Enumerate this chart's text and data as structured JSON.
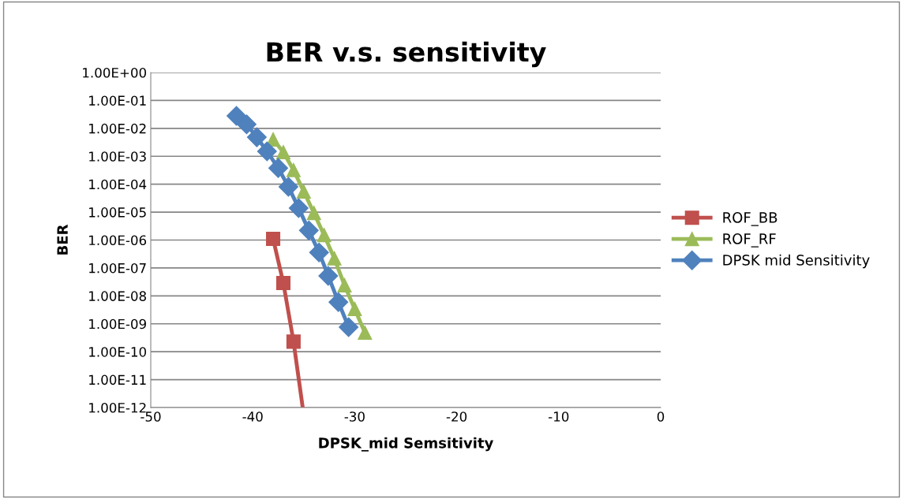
{
  "chart_data": {
    "type": "line",
    "title": "BER v.s. sensitivity",
    "xlabel": "DPSK_mid Semsitivity",
    "ylabel": "BER",
    "log": "y",
    "xlim": [
      -50,
      0
    ],
    "xticks": [
      -50,
      -40,
      -30,
      -20,
      -10,
      0
    ],
    "ylim": [
      1e-12,
      1
    ],
    "yticks": [
      {
        "value": 1e-12,
        "label": "1.00E-12"
      },
      {
        "value": 1e-11,
        "label": "1.00E-11"
      },
      {
        "value": 1e-10,
        "label": "1.00E-10"
      },
      {
        "value": 1e-09,
        "label": "1.00E-09"
      },
      {
        "value": 1e-08,
        "label": "1.00E-08"
      },
      {
        "value": 1e-07,
        "label": "1.00E-07"
      },
      {
        "value": 1e-06,
        "label": "1.00E-06"
      },
      {
        "value": 1e-05,
        "label": "1.00E-05"
      },
      {
        "value": 0.0001,
        "label": "1.00E-04"
      },
      {
        "value": 0.001,
        "label": "1.00E-03"
      },
      {
        "value": 0.01,
        "label": "1.00E-02"
      },
      {
        "value": 0.1,
        "label": "1.00E-01"
      },
      {
        "value": 1,
        "label": "1.00E+00"
      }
    ],
    "grid": "y",
    "legend": "right",
    "line_style": "solid",
    "series": [
      {
        "name": "ROF_BB",
        "color": "#c0504d",
        "marker": "square",
        "x": [
          -38,
          -37,
          -36,
          -35.1
        ],
        "values": [
          1.1e-06,
          2.9e-08,
          2.3e-10,
          1e-12
        ]
      },
      {
        "name": "ROF_RF",
        "color": "#9bbb59",
        "marker": "triangle",
        "x": [
          -38,
          -37,
          -36,
          -35,
          -34,
          -33,
          -32,
          -31,
          -30,
          -29
        ],
        "values": [
          0.004,
          0.0014,
          0.00032,
          5.5e-05,
          9.3e-06,
          1.5e-06,
          2.2e-07,
          2.4e-08,
          3.4e-09,
          4.8e-10
        ]
      },
      {
        "name": "DPSK mid Sensitivity",
        "color": "#4f81bd",
        "marker": "diamond",
        "x": [
          -41.6,
          -40.6,
          -39.6,
          -38.6,
          -37.5,
          -36.5,
          -35.5,
          -34.5,
          -33.5,
          -32.6,
          -31.6,
          -30.6
        ],
        "values": [
          0.028,
          0.014,
          0.0048,
          0.0015,
          0.00038,
          8.1e-05,
          1.4e-05,
          2.2e-06,
          3.6e-07,
          5.2e-08,
          6e-09,
          7.6e-10
        ]
      }
    ]
  }
}
